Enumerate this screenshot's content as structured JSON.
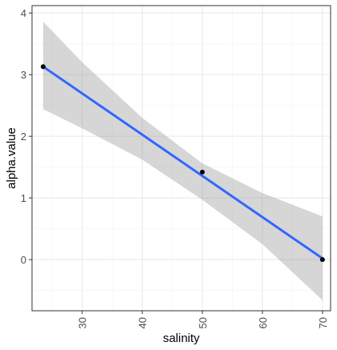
{
  "chart_data": {
    "type": "scatter",
    "title": "",
    "xlabel": "salinity",
    "ylabel": "alpha.value",
    "xlim": [
      21.65,
      71.35
    ],
    "ylim": [
      -0.83,
      4.12
    ],
    "x_ticks": [
      30,
      40,
      50,
      60,
      70
    ],
    "y_ticks": [
      0,
      1,
      2,
      3,
      4
    ],
    "x_tick_labels": [
      "30",
      "40",
      "50",
      "60",
      "70"
    ],
    "y_tick_labels": [
      "0",
      "1",
      "2",
      "3",
      "4"
    ],
    "grid": true,
    "points": [
      {
        "x": 23.5,
        "y": 3.13
      },
      {
        "x": 50,
        "y": 1.42
      },
      {
        "x": 70,
        "y": 0.0
      }
    ],
    "fit": {
      "method": "lm",
      "line": [
        {
          "x": 23.5,
          "y": 3.13
        },
        {
          "x": 70,
          "y": 0.02
        }
      ],
      "ci_upper": [
        {
          "x": 23.5,
          "y": 3.86
        },
        {
          "x": 30,
          "y": 3.2
        },
        {
          "x": 40,
          "y": 2.3
        },
        {
          "x": 50,
          "y": 1.56
        },
        {
          "x": 60,
          "y": 1.08
        },
        {
          "x": 70,
          "y": 0.7
        }
      ],
      "ci_lower": [
        {
          "x": 23.5,
          "y": 2.44
        },
        {
          "x": 30,
          "y": 2.13
        },
        {
          "x": 40,
          "y": 1.62
        },
        {
          "x": 50,
          "y": 0.97
        },
        {
          "x": 60,
          "y": 0.25
        },
        {
          "x": 70,
          "y": -0.66
        }
      ]
    },
    "colors": {
      "line": "#3366FF",
      "ribbon": "#999999",
      "point": "#000000",
      "panel_border": "#333333",
      "grid_major": "#ebebeb",
      "grid_minor": "#f5f5f5"
    }
  }
}
